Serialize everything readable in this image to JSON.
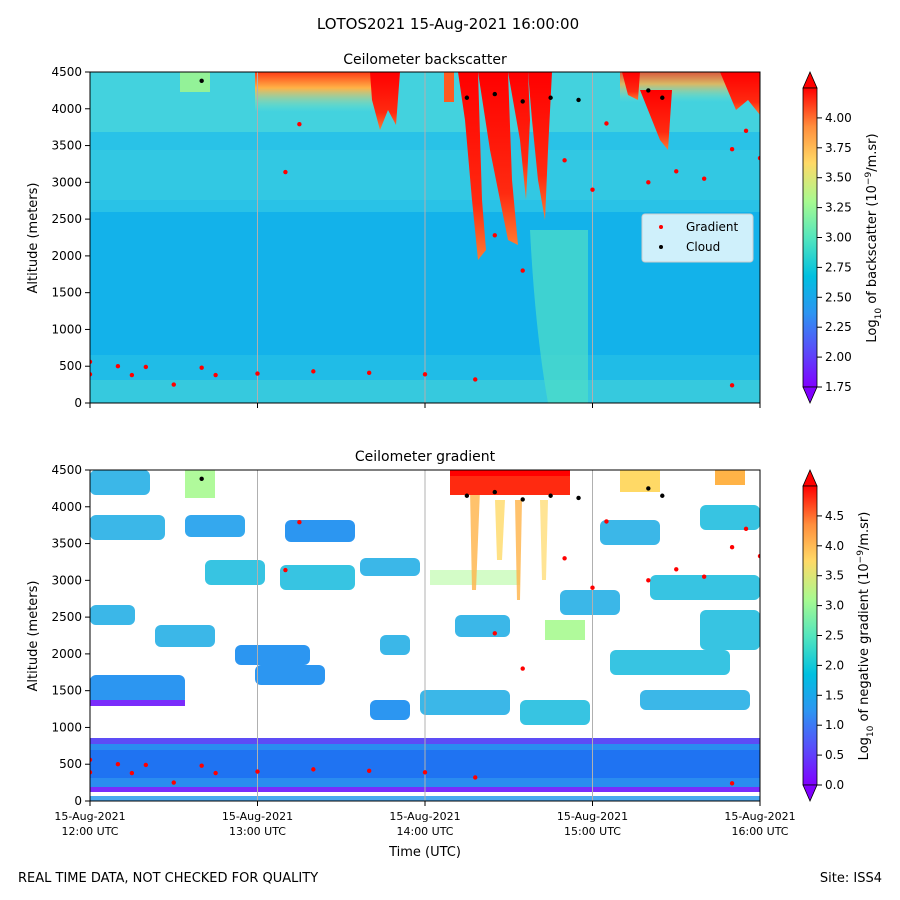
{
  "figure": {
    "title": "LOTOS2021 15-Aug-2021 16:00:00",
    "footer_left": "REAL TIME DATA, NOT CHECKED FOR QUALITY",
    "footer_right": "Site: ISS4"
  },
  "colors": {
    "background_field": "#12b0ea",
    "gradient_marker": "#ff0000",
    "cloud_marker": "#000000",
    "gridline": "#b0b0b0"
  },
  "chart_data": [
    {
      "type": "heatmap",
      "title": "Ceilometer backscatter",
      "ylabel": "Altitude (meters)",
      "xlabel": "",
      "x_range": [
        "2021-08-15T12:00Z",
        "2021-08-15T16:00Z"
      ],
      "ylim": [
        0,
        4500
      ],
      "y_ticks": [
        0,
        500,
        1000,
        1500,
        2000,
        2500,
        3000,
        3500,
        4000,
        4500
      ],
      "x_ticks_shown": false,
      "grid": "vertical lines at hourly ticks",
      "colorbar": {
        "label": "Log10 of backscatter (10^-9/m.sr)",
        "label_main": "Log",
        "label_sub": "10",
        "label_rest": " of backscatter (10",
        "label_sup": "−9",
        "label_end": "/m.sr)",
        "range": [
          1.75,
          4.25
        ],
        "ticks": [
          "1.75",
          "2.00",
          "2.25",
          "2.50",
          "2.75",
          "3.00",
          "3.25",
          "3.50",
          "3.75",
          "4.00"
        ],
        "colormap": "rainbow",
        "extend": "both"
      },
      "legend": {
        "placement": "center-right",
        "entries": [
          {
            "label": "Gradient",
            "color": "#ff0000"
          },
          {
            "label": "Cloud",
            "color": "#000000"
          }
        ]
      },
      "gradient_points": [
        {
          "t": "12:00",
          "alt": 560
        },
        {
          "t": "12:10",
          "alt": 500
        },
        {
          "t": "12:20",
          "alt": 490
        },
        {
          "t": "12:40",
          "alt": 480
        },
        {
          "t": "13:00",
          "alt": 400
        },
        {
          "t": "13:20",
          "alt": 430
        },
        {
          "t": "13:40",
          "alt": 410
        },
        {
          "t": "14:00",
          "alt": 390
        },
        {
          "t": "14:18",
          "alt": 320
        },
        {
          "t": "12:00",
          "alt": 390
        },
        {
          "t": "12:15",
          "alt": 380
        },
        {
          "t": "12:30",
          "alt": 250
        },
        {
          "t": "12:45",
          "alt": 380
        },
        {
          "t": "13:10",
          "alt": 3140
        },
        {
          "t": "13:15",
          "alt": 3790
        },
        {
          "t": "14:25",
          "alt": 2280
        },
        {
          "t": "14:35",
          "alt": 1800
        },
        {
          "t": "14:50",
          "alt": 3300
        },
        {
          "t": "15:00",
          "alt": 2900
        },
        {
          "t": "15:05",
          "alt": 3800
        },
        {
          "t": "15:20",
          "alt": 3000
        },
        {
          "t": "15:30",
          "alt": 3150
        },
        {
          "t": "15:40",
          "alt": 3050
        },
        {
          "t": "15:50",
          "alt": 3450
        },
        {
          "t": "15:55",
          "alt": 3700
        },
        {
          "t": "16:00",
          "alt": 3330
        },
        {
          "t": "15:50",
          "alt": 240
        }
      ],
      "cloud_points": [
        {
          "t": "12:40",
          "alt": 4380
        },
        {
          "t": "14:15",
          "alt": 4150
        },
        {
          "t": "14:25",
          "alt": 4200
        },
        {
          "t": "14:35",
          "alt": 4100
        },
        {
          "t": "14:45",
          "alt": 4150
        },
        {
          "t": "14:55",
          "alt": 4120
        },
        {
          "t": "15:20",
          "alt": 4250
        },
        {
          "t": "15:25",
          "alt": 4150
        }
      ]
    },
    {
      "type": "heatmap",
      "title": "Ceilometer gradient",
      "ylabel": "Altitude (meters)",
      "xlabel": "Time (UTC)",
      "x_range": [
        "2021-08-15T12:00Z",
        "2021-08-15T16:00Z"
      ],
      "x_ticks": [
        {
          "date": "15-Aug-2021",
          "time": "12:00 UTC"
        },
        {
          "date": "15-Aug-2021",
          "time": "13:00 UTC"
        },
        {
          "date": "15-Aug-2021",
          "time": "14:00 UTC"
        },
        {
          "date": "15-Aug-2021",
          "time": "15:00 UTC"
        },
        {
          "date": "15-Aug-2021",
          "time": "16:00 UTC"
        }
      ],
      "ylim": [
        0,
        4500
      ],
      "y_ticks": [
        0,
        500,
        1000,
        1500,
        2000,
        2500,
        3000,
        3500,
        4000,
        4500
      ],
      "grid": "vertical lines at hourly ticks",
      "colorbar": {
        "label": "Log10 of negative gradient (10^-9/m.sr)",
        "label_main": "Log",
        "label_sub": "10",
        "label_rest": " of negative gradient (10",
        "label_sup": "−9",
        "label_end": "/m.sr)",
        "range": [
          0.0,
          5.0
        ],
        "ticks": [
          "0.0",
          "0.5",
          "1.0",
          "1.5",
          "2.0",
          "2.5",
          "3.0",
          "3.5",
          "4.0",
          "4.5"
        ],
        "colormap": "rainbow",
        "extend": "both"
      }
    }
  ]
}
